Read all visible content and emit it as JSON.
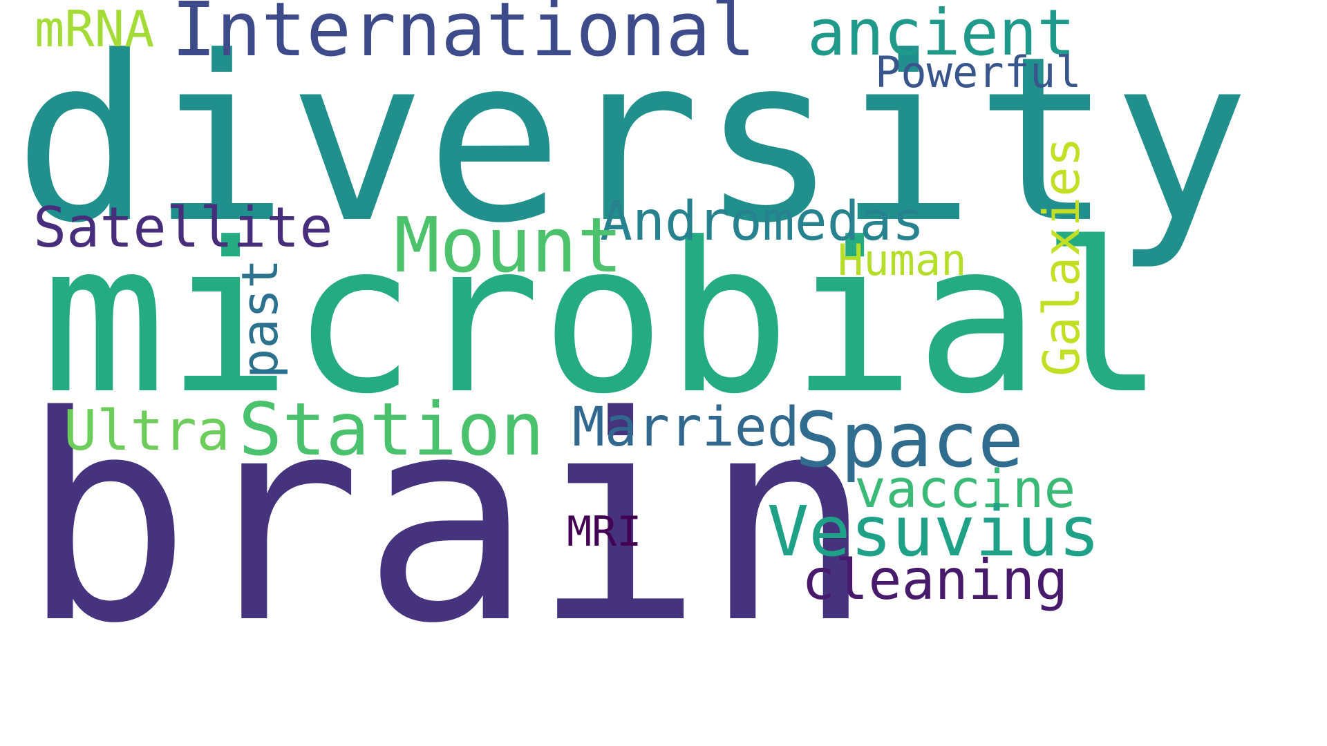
{
  "words": {
    "diversity": {
      "text": "diversity",
      "color": "#21908c"
    },
    "microbial": {
      "text": "microbial",
      "color": "#25ab82"
    },
    "brain": {
      "text": "brain",
      "color": "#46337e"
    },
    "international": {
      "text": "International",
      "color": "#3e4b8a"
    },
    "ancient": {
      "text": "ancient",
      "color": "#1f9a8a"
    },
    "mrna": {
      "text": "mRNA",
      "color": "#a5db36"
    },
    "powerful": {
      "text": "Powerful",
      "color": "#39568c"
    },
    "andromedas": {
      "text": "Andromedas",
      "color": "#26828e"
    },
    "mount": {
      "text": "Mount",
      "color": "#4cc26c"
    },
    "satellite": {
      "text": "Satellite",
      "color": "#472d7b"
    },
    "human": {
      "text": "Human",
      "color": "#b5de2b"
    },
    "ultra": {
      "text": "Ultra",
      "color": "#6ccd5a"
    },
    "station": {
      "text": "Station",
      "color": "#4ac16d"
    },
    "married": {
      "text": "Married",
      "color": "#31688e"
    },
    "space": {
      "text": "Space",
      "color": "#2f6c8e"
    },
    "vaccine": {
      "text": "vaccine",
      "color": "#3aba76"
    },
    "vesuvius": {
      "text": "Vesuvius",
      "color": "#1fa188"
    },
    "mri": {
      "text": "MRI",
      "color": "#440154"
    },
    "cleaning": {
      "text": "cleaning",
      "color": "#481a6c"
    },
    "past": {
      "text": "past",
      "color": "#2c728e"
    },
    "galaxies": {
      "text": "Galaxies",
      "color": "#c2df23"
    }
  }
}
